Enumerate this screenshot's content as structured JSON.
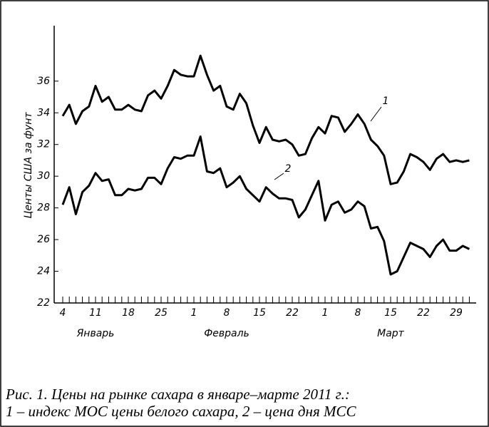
{
  "chart_data": {
    "type": "line",
    "ylabel": "Центы США за фунт",
    "caption": [
      "Рис. 1. Цены на рынке сахара в январе–марте 2011 г.:",
      "1 – индекс МОС цены белого сахара, 2 – цена дня МСС"
    ],
    "categories": [
      "4",
      null,
      null,
      null,
      null,
      "11",
      null,
      null,
      null,
      null,
      "18",
      null,
      null,
      null,
      null,
      "25",
      null,
      null,
      null,
      null,
      "1",
      null,
      null,
      null,
      null,
      "8",
      null,
      null,
      null,
      null,
      "15",
      null,
      null,
      null,
      null,
      "22",
      null,
      null,
      null,
      null,
      "1",
      null,
      null,
      null,
      null,
      "8",
      null,
      null,
      null,
      null,
      "15",
      null,
      null,
      null,
      null,
      "22",
      null,
      null,
      null,
      null,
      "29",
      null,
      null
    ],
    "month_labels": [
      "Январь",
      "Февраль",
      "Март"
    ],
    "series": [
      {
        "name": "1",
        "color": "#000000",
        "values": [
          33.8,
          34.5,
          33.3,
          34.1,
          34.4,
          35.7,
          34.7,
          35.0,
          34.2,
          34.2,
          34.5,
          34.2,
          34.1,
          35.1,
          35.4,
          34.9,
          35.7,
          36.7,
          36.4,
          36.3,
          36.3,
          37.6,
          36.4,
          35.4,
          35.7,
          34.4,
          34.2,
          35.2,
          34.6,
          33.2,
          32.1,
          33.1,
          32.3,
          32.2,
          32.3,
          32.0,
          31.3,
          31.4,
          32.4,
          33.1,
          32.7,
          33.8,
          33.7,
          32.8,
          33.3,
          33.9,
          33.3,
          32.3,
          31.9,
          31.3,
          29.5,
          29.6,
          30.3,
          31.4,
          31.2,
          30.9,
          30.4,
          31.1,
          31.4,
          30.9,
          31.0,
          30.9,
          31.0
        ]
      },
      {
        "name": "2",
        "color": "#000000",
        "values": [
          28.2,
          29.3,
          27.6,
          29.0,
          29.4,
          30.2,
          29.7,
          29.8,
          28.8,
          28.8,
          29.2,
          29.1,
          29.2,
          29.9,
          29.9,
          29.5,
          30.5,
          31.2,
          31.1,
          31.3,
          31.3,
          32.5,
          30.3,
          30.2,
          30.5,
          29.3,
          29.6,
          30.0,
          29.2,
          28.8,
          28.4,
          29.3,
          28.9,
          28.6,
          28.6,
          28.5,
          27.4,
          27.9,
          28.8,
          29.7,
          27.2,
          28.2,
          28.4,
          27.7,
          27.9,
          28.4,
          28.1,
          26.7,
          26.8,
          25.9,
          23.8,
          24.0,
          24.9,
          25.8,
          25.6,
          25.4,
          24.9,
          25.6,
          26.0,
          25.3,
          25.3,
          25.6,
          25.4
        ]
      }
    ],
    "ylim": [
      22,
      39.5
    ],
    "yticks": [
      22,
      24,
      26,
      28,
      30,
      32,
      34,
      36
    ],
    "grid": false
  }
}
